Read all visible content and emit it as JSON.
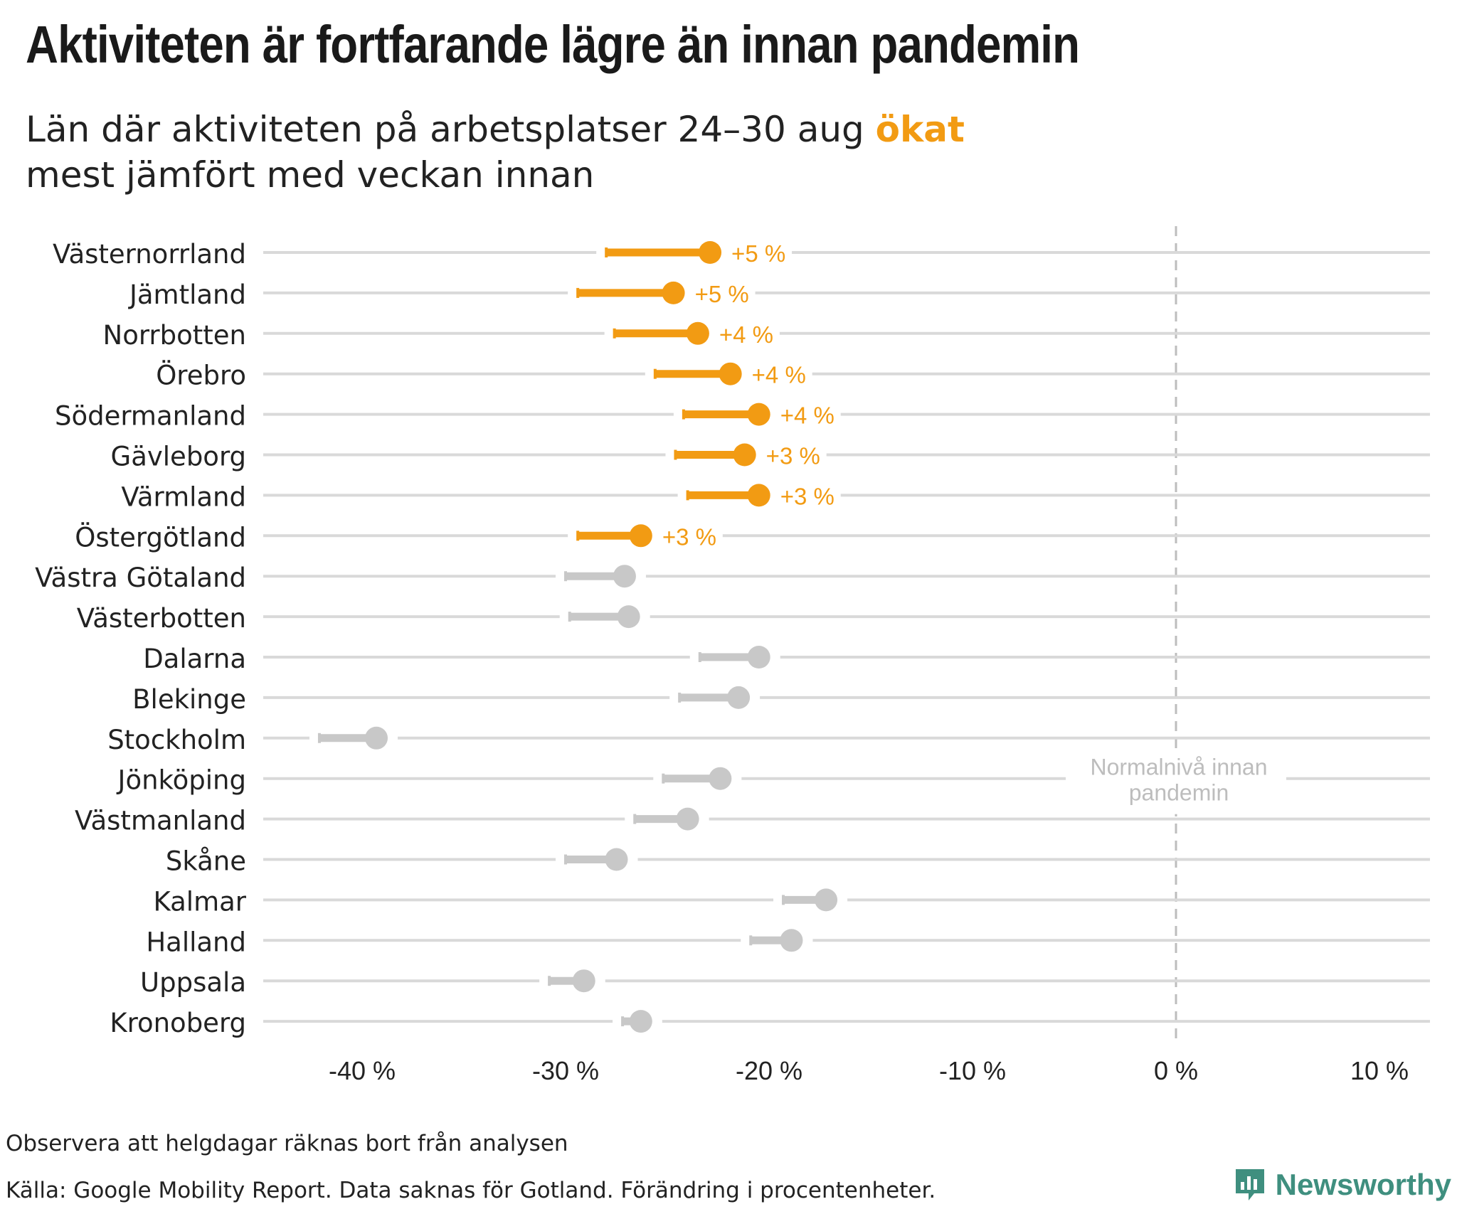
{
  "header": {
    "title": "Aktiviteten är fortfarande lägre än innan pandemin",
    "subtitle_pre": "Län där aktiviteten på arbetsplatser 24–30 aug ",
    "subtitle_highlight": "ökat",
    "subtitle_post": "mest jämfört med veckan innan"
  },
  "colors": {
    "increase": "#f29b13",
    "other": "#c8c8c8",
    "gridline": "#d9d9d9",
    "reference": "#bdbdbd",
    "brand": "#3f8f7f"
  },
  "chart_data": {
    "type": "dumbbell",
    "xlim": [
      -45,
      12
    ],
    "x_ticks": [
      -40,
      -30,
      -20,
      -10,
      0,
      10
    ],
    "x_tick_labels": [
      "-40 %",
      "-30 %",
      "-20 %",
      "-10 %",
      "0 %",
      "10 %"
    ],
    "reference_line": {
      "x": 0,
      "label_line1": "Normalnivå innan",
      "label_line2": "pandemin"
    },
    "rows": [
      {
        "name": "Västernorrland",
        "previous": -28.0,
        "current": -22.9,
        "label": "+5 %",
        "highlight": true
      },
      {
        "name": "Jämtland",
        "previous": -29.4,
        "current": -24.7,
        "label": "+5 %",
        "highlight": true
      },
      {
        "name": "Norrbotten",
        "previous": -27.6,
        "current": -23.5,
        "label": "+4 %",
        "highlight": true
      },
      {
        "name": "Örebro",
        "previous": -25.6,
        "current": -21.9,
        "label": "+4 %",
        "highlight": true
      },
      {
        "name": "Södermanland",
        "previous": -24.2,
        "current": -20.5,
        "label": "+4 %",
        "highlight": true
      },
      {
        "name": "Gävleborg",
        "previous": -24.6,
        "current": -21.2,
        "label": "+3 %",
        "highlight": true
      },
      {
        "name": "Värmland",
        "previous": -24.0,
        "current": -20.5,
        "label": "+3 %",
        "highlight": true
      },
      {
        "name": "Östergötland",
        "previous": -29.4,
        "current": -26.3,
        "label": "+3 %",
        "highlight": true
      },
      {
        "name": "Västra Götaland",
        "previous": -30.0,
        "current": -27.1,
        "label": "",
        "highlight": false
      },
      {
        "name": "Västerbotten",
        "previous": -29.8,
        "current": -26.9,
        "label": "",
        "highlight": false
      },
      {
        "name": "Dalarna",
        "previous": -23.4,
        "current": -20.5,
        "label": "",
        "highlight": false
      },
      {
        "name": "Blekinge",
        "previous": -24.4,
        "current": -21.5,
        "label": "",
        "highlight": false
      },
      {
        "name": "Stockholm",
        "previous": -42.1,
        "current": -39.3,
        "label": "",
        "highlight": false
      },
      {
        "name": "Jönköping",
        "previous": -25.2,
        "current": -22.4,
        "label": "",
        "highlight": false
      },
      {
        "name": "Västmanland",
        "previous": -26.6,
        "current": -24.0,
        "label": "",
        "highlight": false
      },
      {
        "name": "Skåne",
        "previous": -30.0,
        "current": -27.5,
        "label": "",
        "highlight": false
      },
      {
        "name": "Kalmar",
        "previous": -19.3,
        "current": -17.2,
        "label": "",
        "highlight": false
      },
      {
        "name": "Halland",
        "previous": -20.9,
        "current": -18.9,
        "label": "",
        "highlight": false
      },
      {
        "name": "Uppsala",
        "previous": -30.8,
        "current": -29.1,
        "label": "",
        "highlight": false
      },
      {
        "name": "Kronoberg",
        "previous": -27.2,
        "current": -26.3,
        "label": "",
        "highlight": false
      }
    ]
  },
  "footer": {
    "note": "Observera att helgdagar räknas bort från analysen",
    "source": "Källa: Google Mobility Report. Data saknas för Gotland. Förändring i procentenheter.",
    "brand_name": "Newsworthy"
  }
}
